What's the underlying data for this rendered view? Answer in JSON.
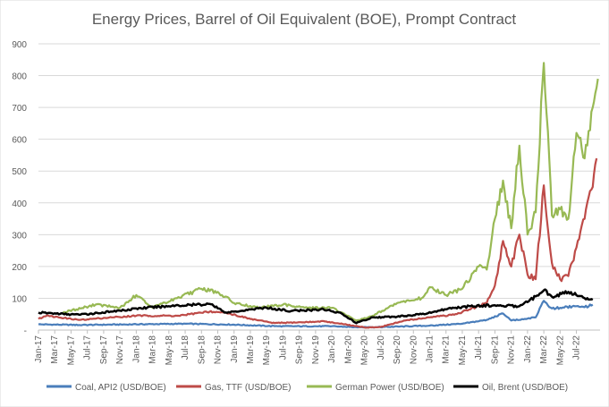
{
  "chart_data": {
    "type": "line",
    "title": "Energy Prices, Barrel of Oil Equivalent (BOE), Prompt Contract",
    "xlabel": "",
    "ylabel": "",
    "ylim": [
      0,
      900
    ],
    "yticks": [
      "-",
      "100",
      "200",
      "300",
      "400",
      "500",
      "600",
      "700",
      "800",
      "900"
    ],
    "grid": "horizontal",
    "legend_position": "bottom",
    "x_tick_labels": [
      "Jan-17",
      "Mar-17",
      "May-17",
      "Jul-17",
      "Sep-17",
      "Nov-17",
      "Jan-18",
      "Mar-18",
      "May-18",
      "Jul-18",
      "Sep-18",
      "Nov-18",
      "Jan-19",
      "Mar-19",
      "May-19",
      "Jul-19",
      "Sep-19",
      "Nov-19",
      "Jan-20",
      "Mar-20",
      "May-20",
      "Jul-20",
      "Sep-20",
      "Nov-20",
      "Jan-21",
      "Mar-21",
      "May-21",
      "Jul-21",
      "Sep-21",
      "Nov-21",
      "Jan-22",
      "Mar-22",
      "May-22",
      "Jul-22"
    ],
    "x_range": [
      "2017-01",
      "2022-09"
    ],
    "series": [
      {
        "name": "Coal, API2 (USD/BOE)",
        "color": "#4a7ebb",
        "points": [
          [
            "2017-01",
            18
          ],
          [
            "2017-06",
            16
          ],
          [
            "2018-01",
            18
          ],
          [
            "2018-07",
            20
          ],
          [
            "2019-01",
            17
          ],
          [
            "2019-06",
            12
          ],
          [
            "2020-01",
            12
          ],
          [
            "2020-04",
            9
          ],
          [
            "2020-08",
            10
          ],
          [
            "2021-01",
            14
          ],
          [
            "2021-05",
            20
          ],
          [
            "2021-08",
            32
          ],
          [
            "2021-10",
            52
          ],
          [
            "2021-11",
            30
          ],
          [
            "2022-01",
            36
          ],
          [
            "2022-02",
            40
          ],
          [
            "2022-03",
            92
          ],
          [
            "2022-04",
            68
          ],
          [
            "2022-05",
            70
          ],
          [
            "2022-07",
            75
          ],
          [
            "2022-08",
            72
          ],
          [
            "2022-09",
            80
          ]
        ]
      },
      {
        "name": "Gas, TTF (USD/BOE)",
        "color": "#be4b48",
        "points": [
          [
            "2017-01",
            35
          ],
          [
            "2017-02",
            45
          ],
          [
            "2017-06",
            32
          ],
          [
            "2017-10",
            40
          ],
          [
            "2018-01",
            45
          ],
          [
            "2018-06",
            45
          ],
          [
            "2018-10",
            58
          ],
          [
            "2018-12",
            55
          ],
          [
            "2019-03",
            35
          ],
          [
            "2019-06",
            22
          ],
          [
            "2019-10",
            25
          ],
          [
            "2019-12",
            28
          ],
          [
            "2020-02",
            20
          ],
          [
            "2020-05",
            8
          ],
          [
            "2020-07",
            10
          ],
          [
            "2020-10",
            30
          ],
          [
            "2021-01",
            40
          ],
          [
            "2021-04",
            48
          ],
          [
            "2021-07",
            75
          ],
          [
            "2021-08",
            85
          ],
          [
            "2021-09",
            140
          ],
          [
            "2021-10",
            280
          ],
          [
            "2021-11",
            200
          ],
          [
            "2021-12",
            300
          ],
          [
            "2022-01",
            175
          ],
          [
            "2022-02",
            160
          ],
          [
            "2022-03",
            455
          ],
          [
            "2022-04",
            210
          ],
          [
            "2022-05",
            160
          ],
          [
            "2022-06",
            170
          ],
          [
            "2022-07",
            260
          ],
          [
            "2022-08",
            350
          ],
          [
            "2022-09",
            450
          ],
          [
            "2022-09-15",
            540
          ]
        ]
      },
      {
        "name": "German Power (USD/BOE)",
        "color": "#98b954",
        "points": [
          [
            "2017-04",
            55
          ],
          [
            "2017-08",
            80
          ],
          [
            "2017-11",
            70
          ],
          [
            "2018-01",
            110
          ],
          [
            "2018-03",
            70
          ],
          [
            "2018-06",
            100
          ],
          [
            "2018-09",
            130
          ],
          [
            "2018-11",
            120
          ],
          [
            "2019-01",
            85
          ],
          [
            "2019-04",
            70
          ],
          [
            "2019-07",
            80
          ],
          [
            "2019-10",
            70
          ],
          [
            "2020-01",
            70
          ],
          [
            "2020-04",
            30
          ],
          [
            "2020-06",
            45
          ],
          [
            "2020-09",
            85
          ],
          [
            "2020-12",
            100
          ],
          [
            "2021-01",
            135
          ],
          [
            "2021-03",
            110
          ],
          [
            "2021-05",
            130
          ],
          [
            "2021-07",
            200
          ],
          [
            "2021-08",
            190
          ],
          [
            "2021-09",
            350
          ],
          [
            "2021-10",
            470
          ],
          [
            "2021-11",
            320
          ],
          [
            "2021-12",
            580
          ],
          [
            "2022-01",
            300
          ],
          [
            "2022-02",
            370
          ],
          [
            "2022-03",
            840
          ],
          [
            "2022-04",
            360
          ],
          [
            "2022-05",
            380
          ],
          [
            "2022-06",
            350
          ],
          [
            "2022-07",
            620
          ],
          [
            "2022-08",
            540
          ],
          [
            "2022-09",
            700
          ],
          [
            "2022-09-20",
            790
          ]
        ]
      },
      {
        "name": "Oil, Brent (USD/BOE)",
        "color": "#000000",
        "points": [
          [
            "2017-01",
            55
          ],
          [
            "2017-06",
            48
          ],
          [
            "2017-10",
            58
          ],
          [
            "2018-01",
            68
          ],
          [
            "2018-05",
            75
          ],
          [
            "2018-10",
            82
          ],
          [
            "2018-12",
            55
          ],
          [
            "2019-03",
            65
          ],
          [
            "2019-05",
            70
          ],
          [
            "2019-08",
            60
          ],
          [
            "2019-12",
            65
          ],
          [
            "2020-02",
            55
          ],
          [
            "2020-04",
            22
          ],
          [
            "2020-06",
            40
          ],
          [
            "2020-09",
            42
          ],
          [
            "2020-12",
            50
          ],
          [
            "2021-03",
            65
          ],
          [
            "2021-06",
            75
          ],
          [
            "2021-09",
            78
          ],
          [
            "2021-12",
            75
          ],
          [
            "2022-01",
            88
          ],
          [
            "2022-03",
            125
          ],
          [
            "2022-04",
            105
          ],
          [
            "2022-06",
            120
          ],
          [
            "2022-08",
            100
          ],
          [
            "2022-09",
            95
          ]
        ]
      }
    ]
  }
}
